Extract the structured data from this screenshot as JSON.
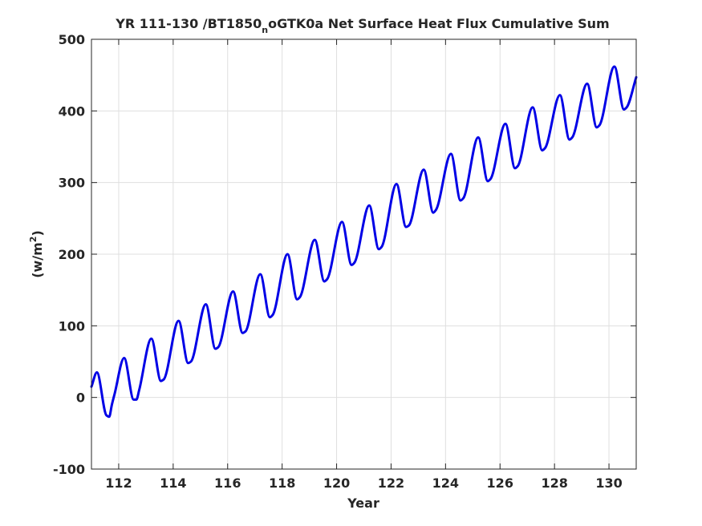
{
  "chart_data": {
    "type": "line",
    "title": {
      "prefix": "YR 111-130 /BT1850",
      "subscript": "n",
      "suffix": "oGTK0a Net Surface Heat Flux  Cumulative Sum"
    },
    "xlabel": "Year",
    "ylabel": {
      "main": "(w/m",
      "superscript": "2",
      "close": ")"
    },
    "xlim": [
      111,
      131
    ],
    "ylim": [
      -100,
      500
    ],
    "xticks": [
      112,
      114,
      116,
      118,
      120,
      122,
      124,
      126,
      128,
      130
    ],
    "xtick_labels": [
      "112",
      "114",
      "116",
      "118",
      "120",
      "122",
      "124",
      "126",
      "128",
      "130"
    ],
    "yticks": [
      -100,
      0,
      100,
      200,
      300,
      400,
      500
    ],
    "ytick_labels": [
      "-100",
      "0",
      "100",
      "200",
      "300",
      "400",
      "500"
    ],
    "grid": true,
    "legend": "none",
    "series": [
      {
        "color": "#0000e6",
        "x": [
          111.0,
          111.2,
          111.55,
          111.65,
          111.75,
          111.85,
          112.2,
          112.55,
          112.65,
          112.75,
          113.2,
          113.55,
          113.65,
          114.2,
          114.55,
          114.65,
          115.2,
          115.55,
          115.65,
          116.2,
          116.55,
          116.65,
          117.2,
          117.55,
          117.65,
          118.2,
          118.55,
          118.65,
          119.2,
          119.55,
          119.65,
          120.2,
          120.55,
          120.65,
          121.2,
          121.55,
          121.65,
          122.2,
          122.55,
          122.65,
          123.2,
          123.55,
          123.65,
          124.2,
          124.55,
          124.65,
          125.2,
          125.55,
          125.65,
          126.2,
          126.55,
          126.65,
          127.2,
          127.55,
          127.65,
          128.2,
          128.55,
          128.65,
          129.2,
          129.55,
          129.65,
          130.2,
          130.55,
          130.65,
          131.0
        ],
        "y": [
          15,
          35,
          -25,
          -27,
          -10,
          5,
          55,
          -3,
          -3,
          10,
          82,
          23,
          25,
          107,
          48,
          50,
          130,
          68,
          70,
          148,
          90,
          92,
          172,
          112,
          115,
          200,
          137,
          140,
          220,
          162,
          165,
          245,
          185,
          188,
          268,
          207,
          210,
          298,
          238,
          240,
          318,
          258,
          262,
          340,
          275,
          278,
          363,
          302,
          305,
          382,
          320,
          323,
          405,
          345,
          348,
          422,
          360,
          363,
          438,
          377,
          380,
          462,
          402,
          405,
          447
        ]
      }
    ]
  }
}
